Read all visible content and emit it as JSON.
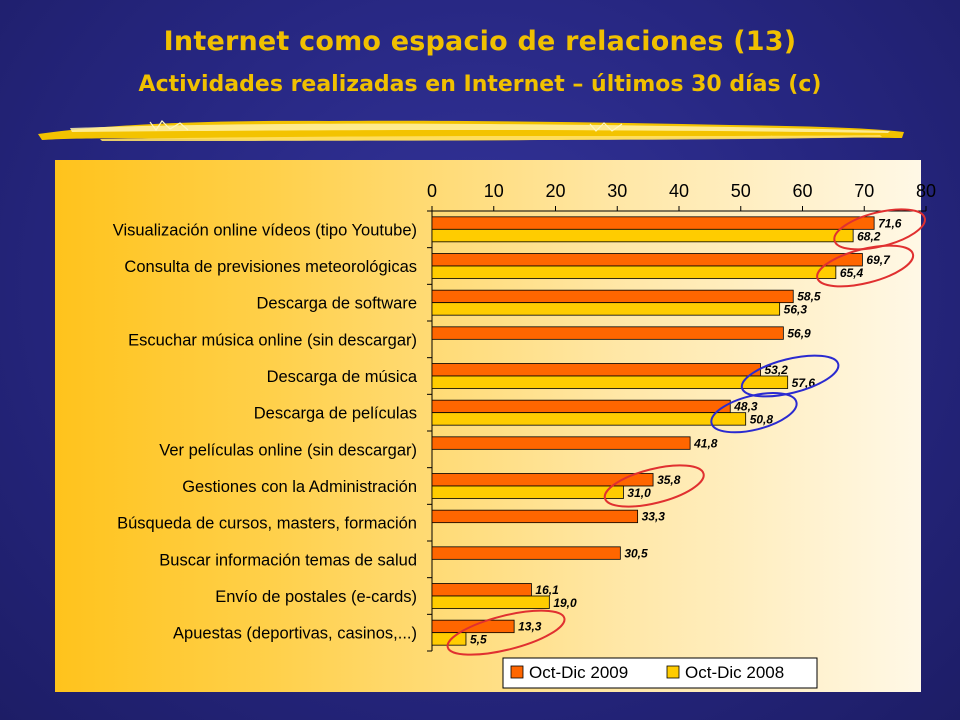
{
  "slide": {
    "title": "Internet como espacio de relaciones (13)",
    "subtitle": "Actividades realizadas en Internet – últimos 30 días (c)"
  },
  "colors": {
    "series_2009": "#ff6600",
    "series_2008": "#ffcc00",
    "title": "#f0c000",
    "highlight_red": "#e03030",
    "highlight_blue": "#2a2ad0"
  },
  "chart_data": {
    "type": "bar",
    "orientation": "horizontal",
    "xlim": [
      0,
      80
    ],
    "x_ticks": [
      "0",
      "10",
      "20",
      "30",
      "40",
      "50",
      "60",
      "70",
      "80"
    ],
    "x_axis_position": "top",
    "grid": false,
    "legend_position": "bottom-right",
    "categories": [
      "Visualización online vídeos (tipo Youtube)",
      "Consulta de previsiones meteorológicas",
      "Descarga de software",
      "Escuchar música online (sin descargar)",
      "Descarga de música",
      "Descarga de películas",
      "Ver películas online (sin descargar)",
      "Gestiones con la Administración",
      "Búsqueda de cursos, masters, formación",
      "Buscar información temas de salud",
      "Envío de postales (e-cards)",
      "Apuestas (deportivas, casinos,...)"
    ],
    "series": [
      {
        "name": "Oct-Dic 2009",
        "values": [
          71.6,
          69.7,
          58.5,
          56.9,
          53.2,
          48.3,
          41.8,
          35.8,
          33.3,
          30.5,
          16.1,
          13.3
        ],
        "labels": [
          "71,6",
          "69,7",
          "58,5",
          "56,9",
          "53,2",
          "48,3",
          "41,8",
          "35,8",
          "33,3",
          "30,5",
          "16,1",
          "13,3"
        ]
      },
      {
        "name": "Oct-Dic 2008",
        "values": [
          68.2,
          65.4,
          56.3,
          null,
          57.6,
          50.8,
          null,
          31.0,
          null,
          null,
          19.0,
          5.5
        ],
        "labels": [
          "68,2",
          "65,4",
          "56,3",
          null,
          "57,6",
          "50,8",
          null,
          "31,0",
          null,
          null,
          "19,0",
          "5,5"
        ]
      }
    ],
    "annotations": [
      {
        "category_index": 0,
        "color": "red",
        "shape": "ellipse"
      },
      {
        "category_index": 1,
        "color": "red",
        "shape": "ellipse"
      },
      {
        "category_index": 4,
        "color": "blue",
        "shape": "ellipse"
      },
      {
        "category_index": 5,
        "color": "blue",
        "shape": "ellipse"
      },
      {
        "category_index": 7,
        "color": "red",
        "shape": "ellipse"
      },
      {
        "category_index": 11,
        "color": "red",
        "shape": "ellipse"
      }
    ]
  }
}
